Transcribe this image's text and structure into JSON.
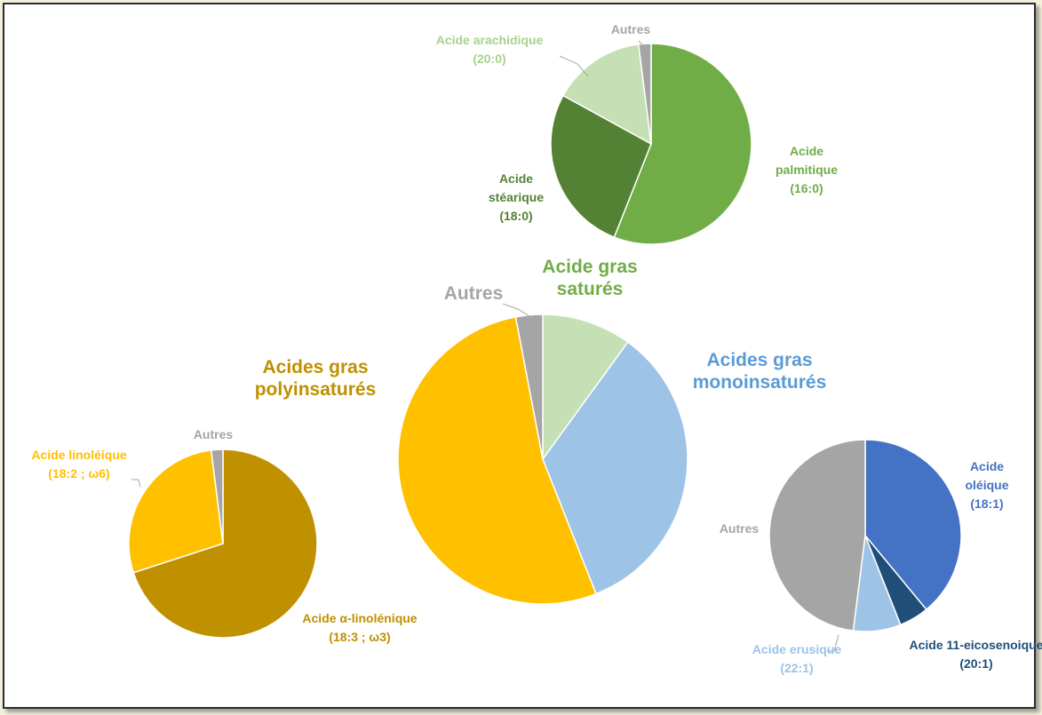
{
  "chart_data": [
    {
      "type": "pie",
      "title": "",
      "slices": [
        {
          "label_lines": [
            "Acide gras",
            "saturés"
          ],
          "value": 10,
          "color": "#c5e0b4"
        },
        {
          "label_lines": [
            "Acides gras",
            "monoinsaturés"
          ],
          "value": 34,
          "color": "#9dc3e6"
        },
        {
          "label_lines": [
            "Acides gras",
            "polyinsaturés"
          ],
          "value": 53,
          "color": "#ffc000"
        },
        {
          "label_lines": [
            "Autres"
          ],
          "value": 3,
          "color": "#a5a5a5"
        }
      ],
      "label_colors": [
        "#70ad47",
        "#5b9bd5",
        "#bf9000",
        "#a5a5a5"
      ]
    },
    {
      "type": "pie",
      "title": "",
      "slices": [
        {
          "label_lines": [
            "Acide",
            "palmitique",
            "(16:0)"
          ],
          "value": 56,
          "color": "#70ad47"
        },
        {
          "label_lines": [
            "Acide",
            "stéarique",
            "(18:0)"
          ],
          "value": 27,
          "color": "#548235"
        },
        {
          "label_lines": [
            "Acide arachidique",
            "(20:0)"
          ],
          "value": 15,
          "color": "#c5e0b4"
        },
        {
          "label_lines": [
            "Autres"
          ],
          "value": 2,
          "color": "#a5a5a5"
        }
      ],
      "label_colors": [
        "#70ad47",
        "#548235",
        "#a9d18e",
        "#a5a5a5"
      ]
    },
    {
      "type": "pie",
      "title": "",
      "slices": [
        {
          "label_lines": [
            "Acide α-linolénique",
            "(18:3 ; ω3)"
          ],
          "value": 70,
          "color": "#bf9000"
        },
        {
          "label_lines": [
            "Acide linoléique",
            "(18:2 ; ω6)"
          ],
          "value": 28,
          "color": "#ffc000"
        },
        {
          "label_lines": [
            "Autres"
          ],
          "value": 2,
          "color": "#a5a5a5"
        }
      ],
      "label_colors": [
        "#bf9000",
        "#ffc000",
        "#a5a5a5"
      ]
    },
    {
      "type": "pie",
      "title": "",
      "slices": [
        {
          "label_lines": [
            "Acide",
            "oléique",
            "(18:1)"
          ],
          "value": 39,
          "color": "#4472c4"
        },
        {
          "label_lines": [
            "Acide 11-eicosenoique",
            "(20:1)"
          ],
          "value": 5,
          "color": "#1f4e79"
        },
        {
          "label_lines": [
            "Acide erusique",
            "(22:1)"
          ],
          "value": 8,
          "color": "#9dc3e6"
        },
        {
          "label_lines": [
            "Autres"
          ],
          "value": 48,
          "color": "#a5a5a5"
        }
      ],
      "label_colors": [
        "#4472c4",
        "#1f4e79",
        "#9dc3e6",
        "#a5a5a5"
      ]
    }
  ]
}
